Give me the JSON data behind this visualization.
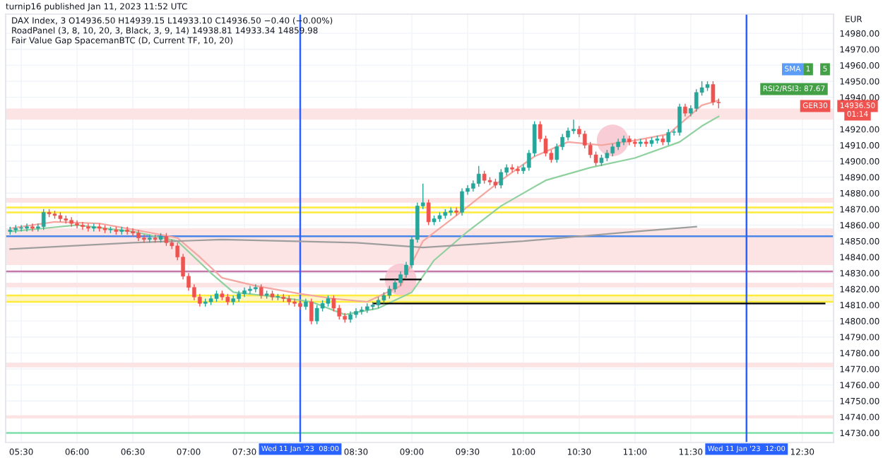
{
  "chart_data": {
    "type": "candlestick",
    "title": "turnip16 published Jan 11, 2023 11:52 UTC",
    "subtitle": "DAX Index, 3 O14936.50 H14939.15 L14933.10 C14936.50 −0.40 (−0.00%)",
    "ylabel": "EUR",
    "annotations": [
      "RoadPanel (3, 8, 10, 20, 3, Black, 3, 9, 14) 14938.81 14933.34 14859.98",
      "Fair Value Gap SpacemanBTC (D, Current TF, 10, 20)",
      "SMA",
      "1",
      "5",
      "RSI2/RSI3: 87.67",
      "GER30",
      "14936.50",
      "01:14"
    ],
    "x": [
      5.4,
      5.45,
      5.5,
      5.55,
      5.6,
      5.65,
      5.7,
      5.75,
      5.8,
      5.85,
      5.9,
      5.95,
      6.0,
      6.05,
      6.1,
      6.15,
      6.2,
      6.25,
      6.3,
      6.35,
      6.4,
      6.45,
      6.5,
      6.55,
      6.6,
      6.65,
      6.7,
      6.75,
      6.8,
      6.85,
      6.9,
      6.95,
      7.0,
      7.05,
      7.1,
      7.15,
      7.2,
      7.25,
      7.3,
      7.35,
      7.4,
      7.45,
      7.5,
      7.55,
      7.6,
      7.65,
      7.7,
      7.75,
      7.8,
      7.85,
      7.9,
      7.95,
      8.0,
      8.05,
      8.1,
      8.15,
      8.2,
      8.25,
      8.3,
      8.35,
      8.4,
      8.45,
      8.5,
      8.55,
      8.6,
      8.65,
      8.7,
      8.75,
      8.8,
      8.85,
      8.9,
      8.95,
      9.0,
      9.05,
      9.1,
      9.15,
      9.2,
      9.25,
      9.3,
      9.35,
      9.4,
      9.45,
      9.5,
      9.55,
      9.6,
      9.65,
      9.7,
      9.75,
      9.8,
      9.85,
      9.9,
      9.95,
      10.0,
      10.05,
      10.1,
      10.15,
      10.2,
      10.25,
      10.3,
      10.35,
      10.4,
      10.45,
      10.5,
      10.55,
      10.6,
      10.65,
      10.7,
      10.75,
      10.8,
      10.85,
      10.9,
      10.95,
      11.0,
      11.05,
      11.1,
      11.15,
      11.2,
      11.25,
      11.3,
      11.35,
      11.4,
      11.45,
      11.5,
      11.55,
      11.6,
      11.65,
      11.7,
      11.75
    ],
    "ohlc": [
      [
        14856,
        14859,
        14854,
        14857
      ],
      [
        14857,
        14860,
        14855,
        14858
      ],
      [
        14858,
        14860,
        14856,
        14858
      ],
      [
        14858,
        14861,
        14856,
        14859
      ],
      [
        14859,
        14861,
        14856,
        14858
      ],
      [
        14858,
        14861,
        14856,
        14859
      ],
      [
        14859,
        14870,
        14857,
        14868
      ],
      [
        14868,
        14870,
        14865,
        14867
      ],
      [
        14867,
        14869,
        14864,
        14866
      ],
      [
        14866,
        14868,
        14862,
        14864
      ],
      [
        14864,
        14866,
        14861,
        14863
      ],
      [
        14863,
        14865,
        14859,
        14861
      ],
      [
        14861,
        14863,
        14858,
        14860
      ],
      [
        14860,
        14862,
        14857,
        14859
      ],
      [
        14859,
        14861,
        14856,
        14858
      ],
      [
        14858,
        14861,
        14856,
        14859
      ],
      [
        14859,
        14861,
        14856,
        14858
      ],
      [
        14858,
        14860,
        14855,
        14857
      ],
      [
        14857,
        14859,
        14855,
        14857
      ],
      [
        14857,
        14859,
        14854,
        14856
      ],
      [
        14856,
        14859,
        14854,
        14857
      ],
      [
        14857,
        14859,
        14854,
        14856
      ],
      [
        14856,
        14858,
        14853,
        14855
      ],
      [
        14855,
        14857,
        14850,
        14852
      ],
      [
        14852,
        14854,
        14849,
        14851
      ],
      [
        14851,
        14854,
        14849,
        14852
      ],
      [
        14852,
        14854,
        14849,
        14851
      ],
      [
        14851,
        14855,
        14849,
        14853
      ],
      [
        14853,
        14855,
        14847,
        14849
      ],
      [
        14849,
        14851,
        14845,
        14847
      ],
      [
        14847,
        14849,
        14838,
        14840
      ],
      [
        14840,
        14842,
        14826,
        14828
      ],
      [
        14828,
        14830,
        14819,
        14821
      ],
      [
        14821,
        14823,
        14813,
        14815
      ],
      [
        14815,
        14817,
        14809,
        14811
      ],
      [
        14811,
        14814,
        14809,
        14812
      ],
      [
        14812,
        14816,
        14810,
        14814
      ],
      [
        14814,
        14819,
        14812,
        14817
      ],
      [
        14817,
        14819,
        14813,
        14815
      ],
      [
        14815,
        14817,
        14810,
        14812
      ],
      [
        14812,
        14816,
        14810,
        14814
      ],
      [
        14814,
        14819,
        14812,
        14817
      ],
      [
        14817,
        14821,
        14815,
        14819
      ],
      [
        14819,
        14822,
        14817,
        14820
      ],
      [
        14820,
        14823,
        14818,
        14821
      ],
      [
        14821,
        14823,
        14814,
        14816
      ],
      [
        14816,
        14819,
        14814,
        14817
      ],
      [
        14817,
        14819,
        14813,
        14815
      ],
      [
        14815,
        14817,
        14813,
        14815
      ],
      [
        14815,
        14817,
        14812,
        14814
      ],
      [
        14814,
        14816,
        14810,
        14812
      ],
      [
        14812,
        14814,
        14809,
        14811
      ],
      [
        14811,
        14813,
        14807,
        14809
      ],
      [
        14809,
        14814,
        14807,
        14812
      ],
      [
        14812,
        14814,
        14798,
        14800
      ],
      [
        14800,
        14810,
        14798,
        14808
      ],
      [
        14808,
        14813,
        14806,
        14811
      ],
      [
        14811,
        14816,
        14809,
        14814
      ],
      [
        14814,
        14816,
        14806,
        14808
      ],
      [
        14808,
        14810,
        14801,
        14803
      ],
      [
        14803,
        14805,
        14799,
        14801
      ],
      [
        14801,
        14806,
        14799,
        14804
      ],
      [
        14804,
        14808,
        14802,
        14806
      ],
      [
        14806,
        14809,
        14804,
        14807
      ],
      [
        14807,
        14811,
        14805,
        14809
      ],
      [
        14809,
        14812,
        14807,
        14810
      ],
      [
        14810,
        14815,
        14808,
        14813
      ],
      [
        14813,
        14818,
        14811,
        14816
      ],
      [
        14816,
        14822,
        14814,
        14820
      ],
      [
        14820,
        14826,
        14818,
        14824
      ],
      [
        14824,
        14831,
        14822,
        14829
      ],
      [
        14829,
        14837,
        14827,
        14835
      ],
      [
        14835,
        14853,
        14833,
        14851
      ],
      [
        14851,
        14874,
        14849,
        14872
      ],
      [
        14872,
        14886,
        14870,
        14874
      ],
      [
        14874,
        14876,
        14860,
        14862
      ],
      [
        14862,
        14866,
        14860,
        14864
      ],
      [
        14864,
        14868,
        14862,
        14866
      ],
      [
        14866,
        14870,
        14864,
        14868
      ],
      [
        14868,
        14871,
        14866,
        14869
      ],
      [
        14869,
        14871,
        14866,
        14868
      ],
      [
        14868,
        14883,
        14866,
        14881
      ],
      [
        14881,
        14885,
        14879,
        14883
      ],
      [
        14883,
        14888,
        14881,
        14886
      ],
      [
        14886,
        14897,
        14884,
        14892
      ],
      [
        14892,
        14894,
        14886,
        14888
      ],
      [
        14888,
        14890,
        14885,
        14887
      ],
      [
        14887,
        14889,
        14883,
        14885
      ],
      [
        14885,
        14895,
        14883,
        14893
      ],
      [
        14893,
        14898,
        14891,
        14896
      ],
      [
        14896,
        14898,
        14893,
        14895
      ],
      [
        14895,
        14897,
        14892,
        14894
      ],
      [
        14894,
        14898,
        14892,
        14896
      ],
      [
        14896,
        14907,
        14894,
        14905
      ],
      [
        14905,
        14925,
        14903,
        14923
      ],
      [
        14923,
        14925,
        14912,
        14914
      ],
      [
        14914,
        14916,
        14903,
        14905
      ],
      [
        14905,
        14907,
        14899,
        14901
      ],
      [
        14901,
        14911,
        14899,
        14909
      ],
      [
        14909,
        14917,
        14907,
        14915
      ],
      [
        14915,
        14921,
        14913,
        14919
      ],
      [
        14919,
        14926,
        14917,
        14920
      ],
      [
        14920,
        14922,
        14915,
        14917
      ],
      [
        14917,
        14919,
        14908,
        14910
      ],
      [
        14910,
        14912,
        14902,
        14904
      ],
      [
        14904,
        14906,
        14897,
        14899
      ],
      [
        14899,
        14904,
        14897,
        14902
      ],
      [
        14902,
        14907,
        14900,
        14905
      ],
      [
        14905,
        14911,
        14903,
        14909
      ],
      [
        14909,
        14914,
        14907,
        14912
      ],
      [
        14912,
        14916,
        14910,
        14914
      ],
      [
        14914,
        14916,
        14910,
        14912
      ],
      [
        14912,
        14914,
        14909,
        14911
      ],
      [
        14911,
        14914,
        14909,
        14912
      ],
      [
        14912,
        14914,
        14909,
        14911
      ],
      [
        14911,
        14915,
        14909,
        14913
      ],
      [
        14913,
        14916,
        14911,
        14914
      ],
      [
        14914,
        14916,
        14910,
        14912
      ],
      [
        14912,
        14920,
        14910,
        14918
      ],
      [
        14918,
        14920,
        14916,
        14918
      ],
      [
        14918,
        14936,
        14916,
        14934
      ],
      [
        14934,
        14936,
        14928,
        14930
      ],
      [
        14930,
        14935,
        14928,
        14933
      ],
      [
        14933,
        14945,
        14931,
        14943
      ],
      [
        14943,
        14950,
        14941,
        14946
      ],
      [
        14946,
        14950,
        14944,
        14948
      ],
      [
        14948,
        14950,
        14935,
        14937
      ],
      [
        14936.5,
        14939.15,
        14933.1,
        14936.5
      ]
    ],
    "colors": [
      "#26a69a",
      "#26a69a",
      "#26a69a",
      "#26a69a",
      "#ef5350",
      "#26a69a",
      "#26a69a",
      "#ef5350",
      "#ef5350",
      "#ef5350",
      "#ef5350",
      "#ef5350",
      "#ef5350",
      "#ef5350",
      "#ef5350",
      "#26a69a",
      "#ef5350",
      "#ef5350",
      "#26a69a",
      "#ef5350",
      "#26a69a",
      "#ef5350",
      "#ef5350",
      "#ef5350",
      "#ef5350",
      "#26a69a",
      "#ef5350",
      "#26a69a",
      "#ef5350",
      "#ef5350",
      "#ef5350",
      "#ef5350",
      "#ef5350",
      "#ef5350",
      "#ef5350",
      "#26a69a",
      "#26a69a",
      "#26a69a",
      "#ef5350",
      "#ef5350",
      "#26a69a",
      "#26a69a",
      "#26a69a",
      "#26a69a",
      "#26a69a",
      "#ef5350",
      "#26a69a",
      "#ef5350",
      "#26a69a",
      "#ef5350",
      "#ef5350",
      "#ef5350",
      "#ef5350",
      "#26a69a",
      "#ef5350",
      "#26a69a",
      "#26a69a",
      "#26a69a",
      "#ef5350",
      "#ef5350",
      "#ef5350",
      "#26a69a",
      "#26a69a",
      "#26a69a",
      "#26a69a",
      "#26a69a",
      "#26a69a",
      "#26a69a",
      "#26a69a",
      "#26a69a",
      "#26a69a",
      "#26a69a",
      "#26a69a",
      "#26a69a",
      "#26a69a",
      "#ef5350",
      "#26a69a",
      "#26a69a",
      "#26a69a",
      "#26a69a",
      "#ef5350",
      "#26a69a",
      "#26a69a",
      "#26a69a",
      "#26a69a",
      "#ef5350",
      "#ef5350",
      "#ef5350",
      "#26a69a",
      "#26a69a",
      "#ef5350",
      "#ef5350",
      "#26a69a",
      "#26a69a",
      "#26a69a",
      "#ef5350",
      "#ef5350",
      "#ef5350",
      "#26a69a",
      "#26a69a",
      "#26a69a",
      "#26a69a",
      "#ef5350",
      "#ef5350",
      "#ef5350",
      "#ef5350",
      "#26a69a",
      "#26a69a",
      "#26a69a",
      "#26a69a",
      "#26a69a",
      "#ef5350",
      "#ef5350",
      "#26a69a",
      "#ef5350",
      "#26a69a",
      "#26a69a",
      "#ef5350",
      "#26a69a",
      "#26a69a",
      "#26a69a",
      "#ef5350",
      "#26a69a",
      "#26a69a",
      "#26a69a",
      "#26a69a",
      "#ef5350",
      "#ef5350"
    ],
    "series": [
      {
        "type": "line",
        "color": "#f4a6a0",
        "x": [
          5.4,
          5.8,
          6.2,
          6.6,
          6.9,
          7.1,
          7.3,
          7.6,
          8.0,
          8.3,
          8.6,
          8.9,
          9.1,
          9.4,
          9.8,
          10.1,
          10.4,
          10.7,
          11.0,
          11.3,
          11.6,
          11.75
        ],
        "values": [
          14858,
          14862,
          14861,
          14856,
          14852,
          14840,
          14827,
          14822,
          14817,
          14814,
          14812,
          14822,
          14850,
          14866,
          14888,
          14903,
          14912,
          14910,
          14913,
          14917,
          14935,
          14938
        ]
      },
      {
        "type": "line",
        "color": "#8fd19e",
        "x": [
          5.4,
          5.7,
          6.0,
          6.5,
          6.9,
          7.2,
          7.4,
          7.8,
          8.1,
          8.4,
          8.7,
          9.0,
          9.2,
          9.5,
          9.8,
          10.2,
          10.6,
          11.0,
          11.4,
          11.6,
          11.75
        ],
        "values": [
          14856,
          14858,
          14860,
          14856,
          14850,
          14830,
          14818,
          14815,
          14812,
          14804,
          14808,
          14818,
          14838,
          14856,
          14872,
          14888,
          14896,
          14902,
          14912,
          14922,
          14928
        ]
      },
      {
        "type": "line",
        "color": "#9e9e9e",
        "x": [
          5.4,
          6.5,
          7.3,
          8.5,
          9.1,
          10.0,
          11.0,
          11.55
        ],
        "values": [
          14845,
          14849,
          14851,
          14849,
          14846,
          14850,
          14856,
          14859
        ]
      },
      {
        "type": "line",
        "color": "#000000",
        "x": [
          8.66,
          12.7
        ],
        "values": [
          14811,
          14811
        ]
      },
      {
        "type": "line",
        "color": "#000000",
        "x": [
          8.72,
          9.08
        ],
        "values": [
          14826,
          14826
        ]
      },
      {
        "type": "scatter",
        "color": "#f8c0cc",
        "marker": "circle",
        "x": [
          8.9,
          10.8
        ],
        "values": [
          14826,
          14913
        ]
      }
    ],
    "ref_lines": [
      {
        "axis": "y",
        "value": 14871,
        "color": "#ffeb3b"
      },
      {
        "axis": "y",
        "value": 14868,
        "color": "#ffeb3b"
      },
      {
        "axis": "y",
        "value": 14816,
        "color": "#ffeb3b"
      },
      {
        "axis": "y",
        "value": 14812,
        "color": "#ffeb3b"
      },
      {
        "axis": "y",
        "value": 14853,
        "color": "#4a86e8"
      },
      {
        "axis": "y",
        "value": 14831,
        "color": "#c678a8"
      },
      {
        "axis": "y",
        "value": 14730,
        "color": "#7ee0a8"
      },
      {
        "axis": "x",
        "value": 8.0,
        "label": "Wed 11 Jan '23  08:00",
        "color": "#2962ff"
      },
      {
        "axis": "x",
        "value": 12.0,
        "label": "Wed 11 Jan '23  12:00",
        "color": "#2962ff"
      }
    ],
    "bands": [
      {
        "axis": "y",
        "from": 14812,
        "to": 14816,
        "color": "#fff6c8"
      },
      {
        "axis": "y",
        "from": 14835,
        "to": 14858,
        "color": "#fde4e4"
      },
      {
        "axis": "y",
        "from": 14874,
        "to": 14877,
        "color": "#fde4e4"
      },
      {
        "axis": "y",
        "from": 14821,
        "to": 14824,
        "color": "#fde4e4"
      },
      {
        "axis": "y",
        "from": 14926,
        "to": 14933,
        "color": "#fde4e4"
      },
      {
        "axis": "y",
        "from": 14771,
        "to": 14774,
        "color": "#fde4e4"
      },
      {
        "axis": "y",
        "from": 14739,
        "to": 14741,
        "color": "#fde4e4"
      }
    ],
    "xlim": [
      5.36,
      12.78
    ],
    "ylim": [
      14724,
      14992
    ],
    "xticks": [
      {
        "value": 5.5,
        "label": "05:30"
      },
      {
        "value": 6,
        "label": "06:00"
      },
      {
        "value": 6.5,
        "label": "06:30"
      },
      {
        "value": 7,
        "label": "07:00"
      },
      {
        "value": 7.5,
        "label": "07:30"
      },
      {
        "value": 8.5,
        "label": "08:30"
      },
      {
        "value": 9,
        "label": "09:00"
      },
      {
        "value": 9.5,
        "label": "09:30"
      },
      {
        "value": 10,
        "label": "10:00"
      },
      {
        "value": 10.5,
        "label": "10:30"
      },
      {
        "value": 11,
        "label": "11:00"
      },
      {
        "value": 11.5,
        "label": "11:30"
      },
      {
        "value": 12.5,
        "label": "12:30"
      }
    ],
    "yticks": [
      {
        "value": 14730,
        "label": "14730.00"
      },
      {
        "value": 14740,
        "label": "14740.00"
      },
      {
        "value": 14750,
        "label": "14750.00"
      },
      {
        "value": 14760,
        "label": "14760.00"
      },
      {
        "value": 14770,
        "label": "14770.00"
      },
      {
        "value": 14780,
        "label": "14780.00"
      },
      {
        "value": 14790,
        "label": "14790.00"
      },
      {
        "value": 14800,
        "label": "14800.00"
      },
      {
        "value": 14810,
        "label": "14810.00"
      },
      {
        "value": 14820,
        "label": "14820.00"
      },
      {
        "value": 14830,
        "label": "14830.00"
      },
      {
        "value": 14840,
        "label": "14840.00"
      },
      {
        "value": 14850,
        "label": "14850.00"
      },
      {
        "value": 14860,
        "label": "14860.00"
      },
      {
        "value": 14870,
        "label": "14870.00"
      },
      {
        "value": 14880,
        "label": "14880.00"
      },
      {
        "value": 14890,
        "label": "14890.00"
      },
      {
        "value": 14900,
        "label": "14900.00"
      },
      {
        "value": 14910,
        "label": "14910.00"
      },
      {
        "value": 14920,
        "label": "14920.00"
      },
      {
        "value": 14940,
        "label": "14940.00"
      },
      {
        "value": 14950,
        "label": "14950.00"
      },
      {
        "value": 14960,
        "label": "14960.00"
      },
      {
        "value": 14970,
        "label": "14970.00"
      },
      {
        "value": 14980,
        "label": "14980.00"
      }
    ],
    "grid": true
  }
}
